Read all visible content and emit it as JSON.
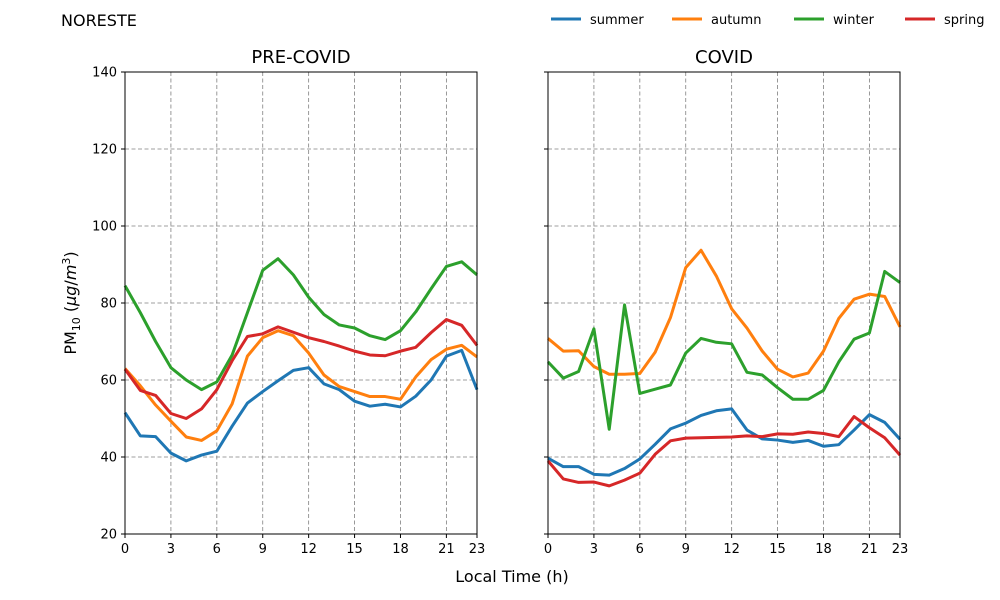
{
  "figure": {
    "title": "NORESTE",
    "xlabel": "Local Time (h)",
    "ylabel_main": "PM",
    "ylabel_sub": "10",
    "ylabel_open": " (",
    "ylabel_unit_mu": "μg",
    "ylabel_unit_slash": "/",
    "ylabel_unit_m": "m",
    "ylabel_unit_exp": "3",
    "ylabel_close": ")"
  },
  "chart_data": [
    {
      "type": "line",
      "title": "PRE-COVID",
      "x": [
        0,
        1,
        2,
        3,
        4,
        5,
        6,
        7,
        8,
        9,
        10,
        11,
        12,
        13,
        14,
        15,
        16,
        17,
        18,
        19,
        20,
        21,
        22,
        23
      ],
      "xticks": [
        0,
        3,
        6,
        9,
        12,
        15,
        18,
        21,
        23
      ],
      "ylim": [
        20,
        140
      ],
      "yticks": [
        20,
        40,
        60,
        80,
        100,
        120,
        140
      ],
      "xlim": [
        0,
        23
      ],
      "grid": true,
      "series": [
        {
          "name": "summer",
          "color": "#1f77b4",
          "values": [
            51.5,
            45.5,
            45.3,
            41.0,
            39.0,
            40.5,
            41.5,
            48.0,
            54.0,
            57.0,
            59.8,
            62.5,
            63.2,
            59.0,
            57.5,
            54.5,
            53.2,
            53.7,
            53.0,
            55.8,
            60.0,
            66.2,
            67.7,
            57.5
          ]
        },
        {
          "name": "autumn",
          "color": "#ff7f0e",
          "values": [
            63.0,
            58.5,
            53.5,
            49.3,
            45.2,
            44.3,
            46.8,
            53.8,
            66.2,
            71.0,
            72.8,
            71.5,
            67.0,
            61.3,
            58.3,
            57.0,
            55.7,
            55.7,
            55.0,
            60.8,
            65.3,
            68.0,
            69.0,
            66.0
          ]
        },
        {
          "name": "winter",
          "color": "#2ca02c",
          "values": [
            84.5,
            77.5,
            70.0,
            63.2,
            60.0,
            57.5,
            59.5,
            66.5,
            77.5,
            88.5,
            91.5,
            87.3,
            81.5,
            77.0,
            74.3,
            73.5,
            71.5,
            70.5,
            72.8,
            77.7,
            83.7,
            89.5,
            90.7,
            87.3
          ]
        },
        {
          "name": "spring",
          "color": "#d62728",
          "values": [
            62.8,
            57.3,
            56.0,
            51.3,
            50.0,
            52.5,
            57.5,
            65.0,
            71.3,
            72.0,
            73.8,
            72.4,
            71.0,
            70.0,
            68.8,
            67.5,
            66.5,
            66.3,
            67.5,
            68.5,
            72.3,
            75.7,
            74.2,
            69.0
          ]
        }
      ]
    },
    {
      "type": "line",
      "title": "COVID",
      "x": [
        0,
        1,
        2,
        3,
        4,
        5,
        6,
        7,
        8,
        9,
        10,
        11,
        12,
        13,
        14,
        15,
        16,
        17,
        18,
        19,
        20,
        21,
        22,
        23
      ],
      "xticks": [
        0,
        3,
        6,
        9,
        12,
        15,
        18,
        21,
        23
      ],
      "ylim": [
        20,
        140
      ],
      "yticks": [
        20,
        40,
        60,
        80,
        100,
        120,
        140
      ],
      "xlim": [
        0,
        23
      ],
      "grid": true,
      "series": [
        {
          "name": "summer",
          "color": "#1f77b4",
          "values": [
            39.7,
            37.5,
            37.5,
            35.5,
            35.3,
            37.0,
            39.5,
            43.3,
            47.3,
            48.8,
            50.8,
            52.0,
            52.5,
            47.0,
            44.7,
            44.4,
            43.8,
            44.3,
            42.8,
            43.2,
            47.0,
            51.0,
            49.0,
            44.6
          ]
        },
        {
          "name": "autumn",
          "color": "#ff7f0e",
          "values": [
            70.8,
            67.5,
            67.6,
            63.5,
            61.5,
            61.5,
            61.7,
            67.2,
            76.2,
            89.2,
            93.7,
            87.0,
            78.5,
            73.5,
            67.5,
            62.8,
            60.8,
            61.8,
            67.5,
            76.0,
            81.0,
            82.3,
            81.7,
            73.8
          ]
        },
        {
          "name": "winter",
          "color": "#2ca02c",
          "values": [
            64.7,
            60.5,
            62.2,
            73.3,
            47.2,
            79.5,
            56.5,
            57.6,
            58.7,
            67.0,
            70.8,
            69.8,
            69.4,
            62.0,
            61.3,
            58.0,
            55.0,
            55.0,
            57.3,
            64.7,
            70.6,
            72.2,
            88.2,
            85.3
          ]
        },
        {
          "name": "spring",
          "color": "#d62728",
          "values": [
            39.0,
            34.3,
            33.4,
            33.5,
            32.5,
            34.0,
            35.8,
            40.7,
            44.2,
            44.9,
            45.0,
            45.1,
            45.2,
            45.5,
            45.3,
            46.0,
            45.9,
            46.5,
            46.1,
            45.3,
            50.5,
            47.6,
            45.0,
            40.5
          ]
        }
      ]
    }
  ],
  "legend": {
    "placement": "top-right",
    "entries": [
      {
        "name": "summer",
        "color": "#1f77b4"
      },
      {
        "name": "autumn",
        "color": "#ff7f0e"
      },
      {
        "name": "winter",
        "color": "#2ca02c"
      },
      {
        "name": "spring",
        "color": "#d62728"
      }
    ]
  }
}
